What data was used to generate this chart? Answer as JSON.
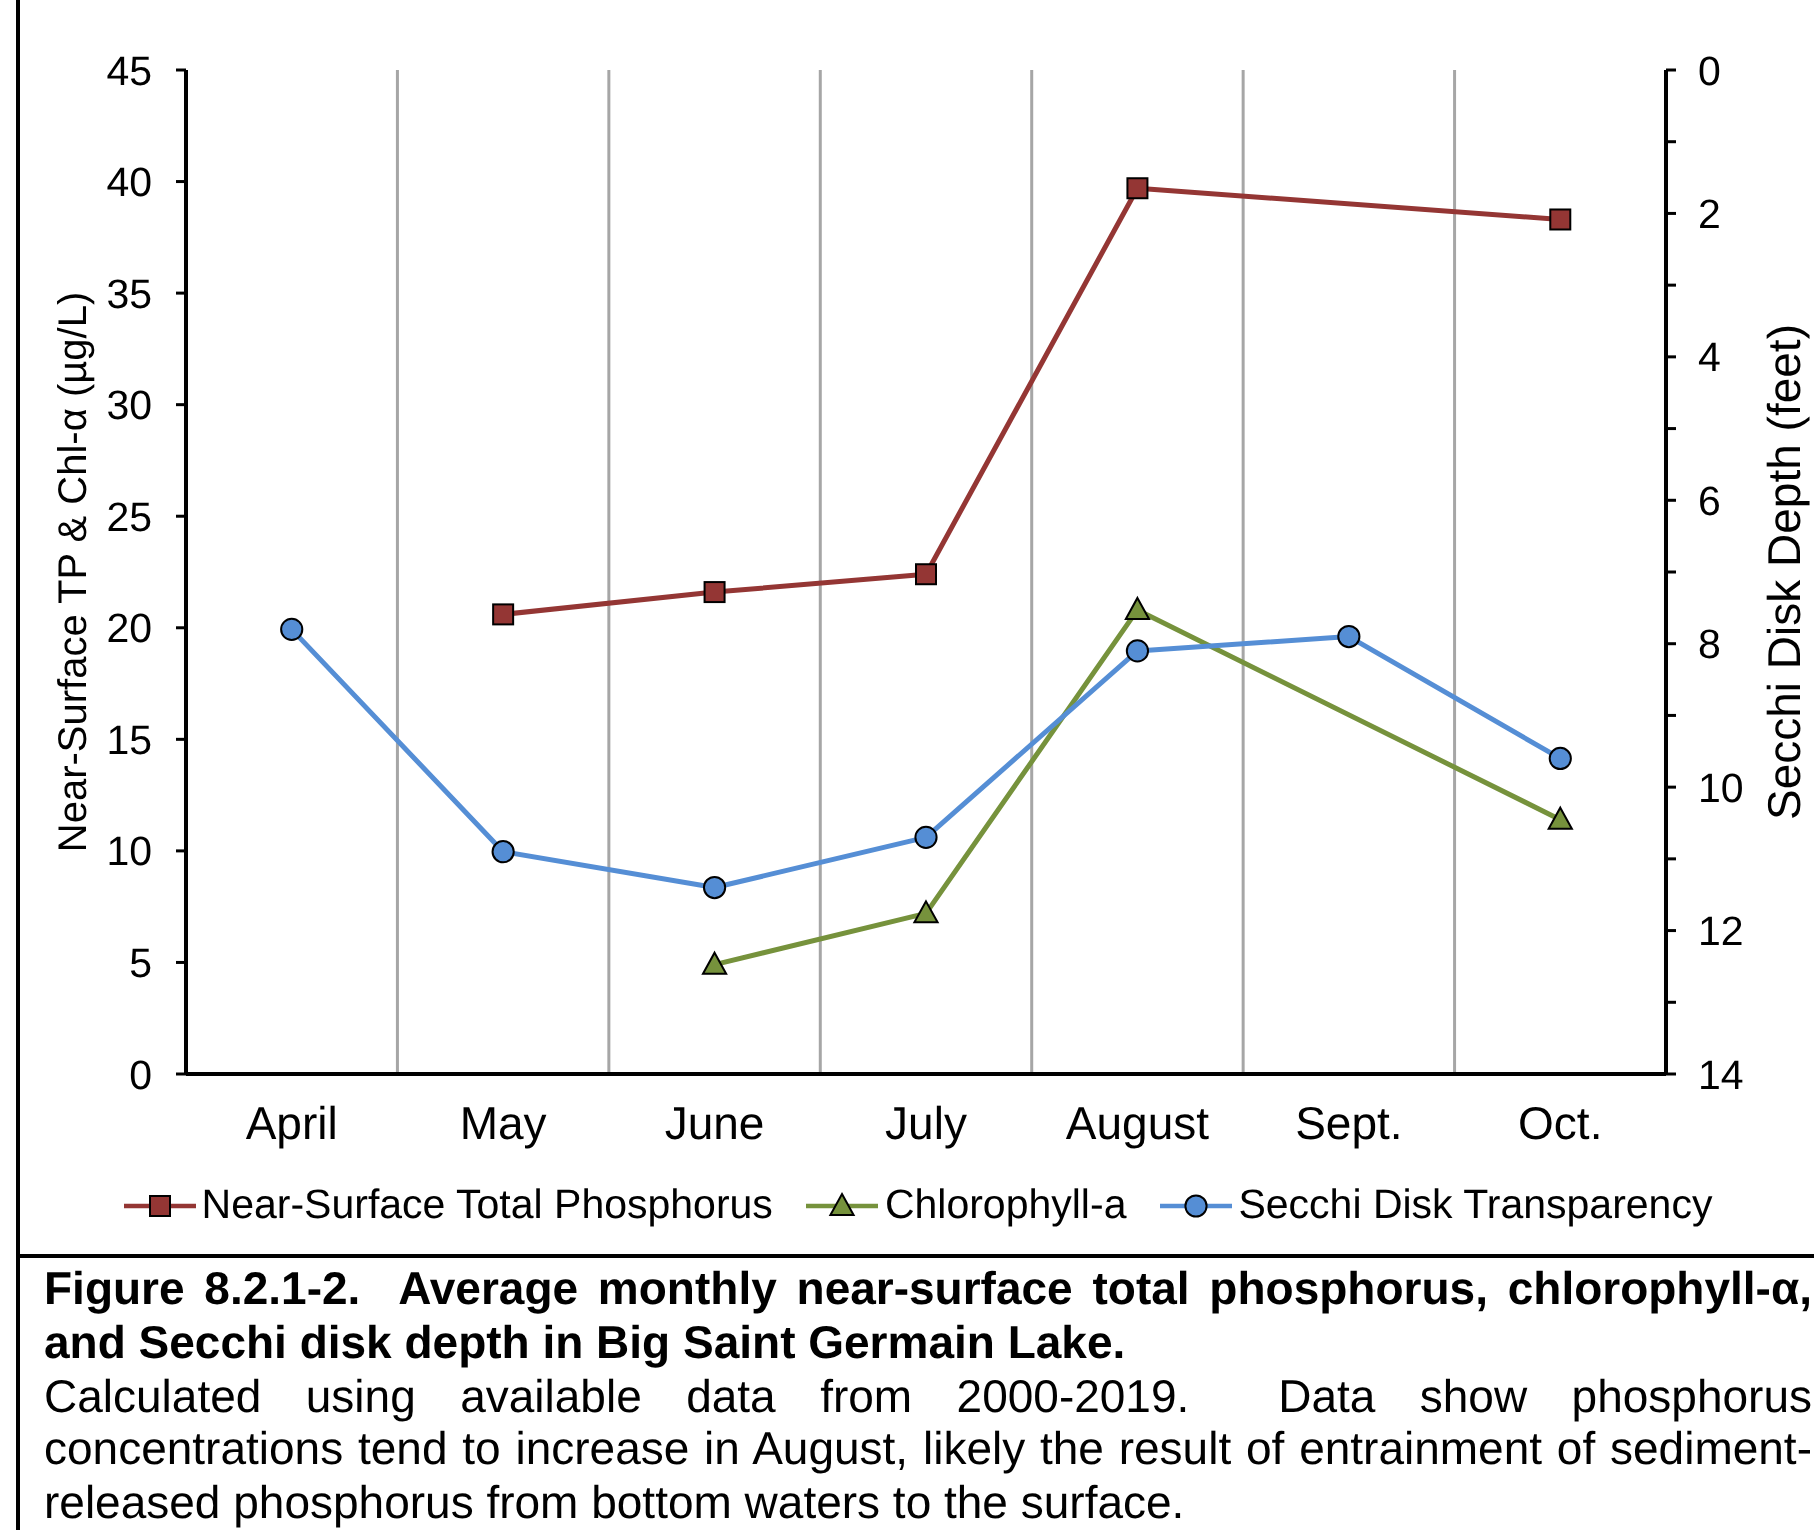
{
  "chart_data": {
    "type": "line",
    "title": "Figure 8.2.1-2.  Average monthly near-surface total phosphorus, chlorophyll-α, and Secchi disk depth in Big Saint Germain Lake.",
    "annotations": [
      "Calculated using available data from 2000-2019.  Data show phosphorus concentrations tend to increase in August, likely the result of entrainment of sediment-released phosphorus from bottom waters to the surface."
    ],
    "ylabel": "Near-Surface TP & Chl-α (µg/L)",
    "y2label": "Secchi Disk Depth (feet)",
    "categories": [
      "April",
      "May",
      "June",
      "July",
      "August",
      "Sept.",
      "Oct."
    ],
    "series": [
      {
        "name": "Near-Surface Total Phosphorus",
        "color": "#943634",
        "marker": "square",
        "values": [
          null,
          20.6,
          21.6,
          22.4,
          39.7,
          null,
          38.3
        ]
      },
      {
        "name": "Chlorophyll-a",
        "color": "#76923c",
        "marker": "triangle",
        "values": [
          null,
          null,
          4.9,
          7.2,
          20.8,
          null,
          11.4
        ]
      },
      {
        "name": "Secchi Disk Transparency",
        "color": "#558ed5",
        "marker": "circle",
        "axis": "y2",
        "values": [
          7.8,
          10.9,
          11.4,
          10.7,
          8.1,
          7.9,
          9.6
        ]
      }
    ],
    "ylim": [
      0,
      45
    ],
    "yticks": [
      0,
      5,
      10,
      15,
      20,
      25,
      30,
      35,
      40,
      45
    ],
    "y2lim": [
      14,
      0
    ],
    "y2ticks": [
      0,
      {
        "value": 1,
        "label": null
      },
      2,
      {
        "value": 3,
        "label": null
      },
      4,
      {
        "value": 5,
        "label": null
      },
      6,
      {
        "value": 7,
        "label": null
      },
      8,
      {
        "value": 9,
        "label": null
      },
      10,
      {
        "value": 11,
        "label": null
      },
      12,
      {
        "value": 13,
        "label": null
      },
      14
    ],
    "grid": "x",
    "legend": "bottom"
  }
}
